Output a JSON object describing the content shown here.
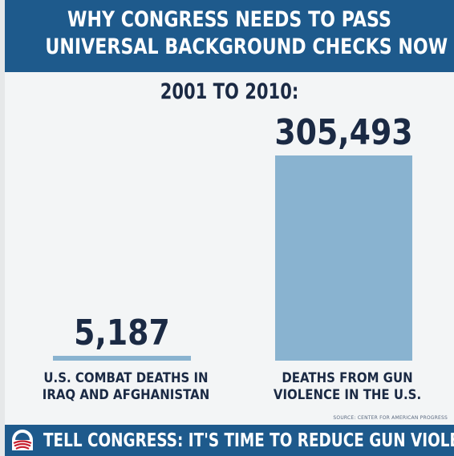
{
  "header": {
    "title_line1": "WHY CONGRESS NEEDS TO PASS",
    "title_line2": "UNIVERSAL BACKGROUND CHECKS NOW"
  },
  "subtitle": "2001 TO 2010:",
  "chart_data": {
    "type": "bar",
    "categories": [
      "U.S. COMBAT DEATHS IN IRAQ AND AFGHANISTAN",
      "DEATHS FROM GUN VIOLENCE IN THE U.S."
    ],
    "category_lines": [
      [
        "U.S. COMBAT DEATHS IN",
        "IRAQ AND AFGHANISTAN"
      ],
      [
        "DEATHS FROM GUN",
        "VIOLENCE IN THE U.S."
      ]
    ],
    "values": [
      5187,
      305493
    ],
    "value_labels": [
      "5,187",
      "305,493"
    ],
    "title": "2001 TO 2010:",
    "xlabel": "",
    "ylabel": "",
    "grid": false,
    "colors": {
      "bar": "#89b3d0",
      "value_text": "#1b2a44"
    }
  },
  "source": "SOURCE: CENTER FOR AMERICAN PROGRESS",
  "footer": {
    "cta": "TELL CONGRESS: IT'S TIME TO REDUCE GUN VIOLENCE",
    "logo_icon": "obama-campaign-logo-icon"
  },
  "colors": {
    "header_bg": "#1e5a8c",
    "background": "#f3f5f6",
    "text_dark": "#1b2a44"
  }
}
